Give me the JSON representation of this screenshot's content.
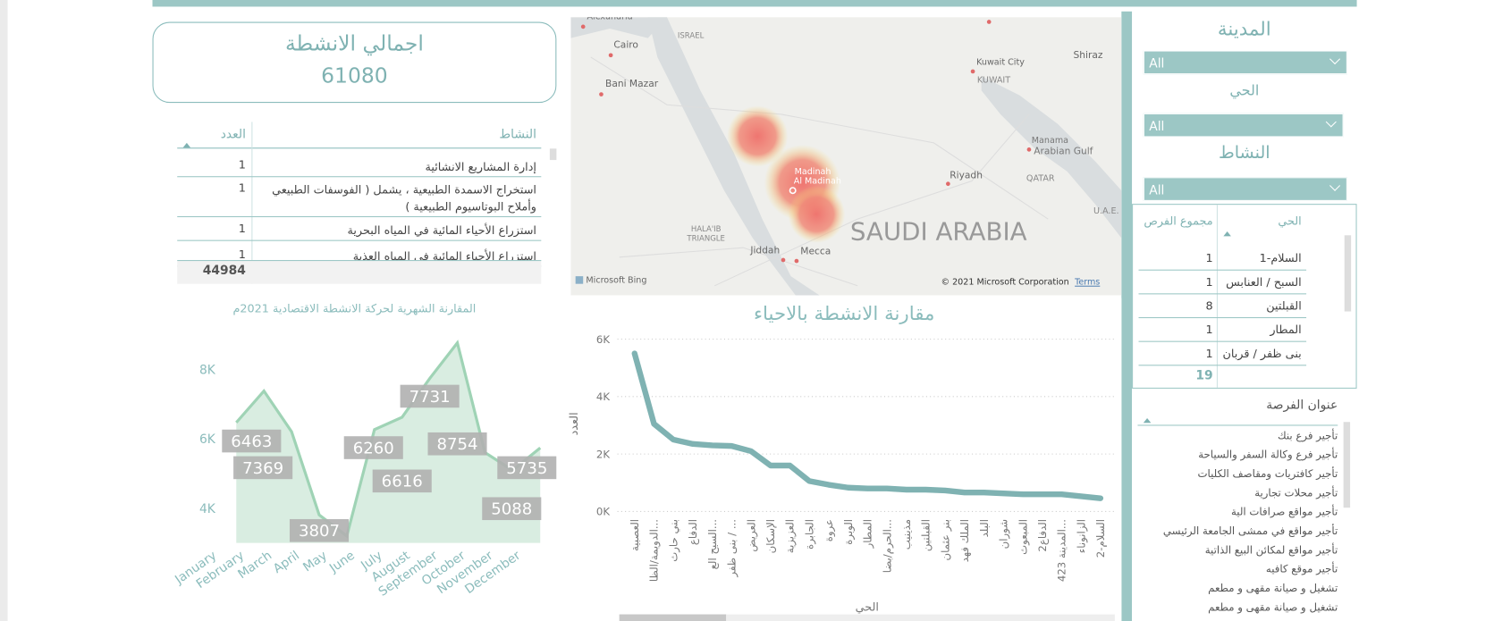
{
  "kpi": {
    "title": "اجمالي الانشطة",
    "value": 61080
  },
  "activity_table": {
    "headers": [
      "النشاط",
      "العدد"
    ],
    "rows": [
      [
        "إدارة المشاريع الانشائية",
        1
      ],
      [
        "استخراج الاسمدة الطبيعية ، يشمل ( الفوسفات الطبيعي وأملاح البوتاسيوم الطبيعية )",
        1
      ],
      [
        "استزراع الأحياء المائية في المياه البحرية",
        1
      ],
      [
        "استزراع الأحياء المائية في المياه العذبة",
        1
      ]
    ],
    "total": 44984
  },
  "map": {
    "labels": [
      "Alexandria",
      "Cairo",
      "ISRAEL",
      "Bani Mazar",
      "Kuwait City",
      "KUWAIT",
      "Shiraz",
      "Manama",
      "Arabian Gulf",
      "QATAR",
      "Riyadh",
      "U.A.E.",
      "Madinah",
      "Al Madinah",
      "SAUDI ARABIA",
      "HALA'IB",
      "TRIANGLE",
      "Jiddah",
      "Mecca"
    ],
    "logo": "Microsoft Bing",
    "attribution": "© 2021 Microsoft Corporation",
    "terms": "Terms"
  },
  "slicers": [
    {
      "label": "المدينة",
      "value": "All"
    },
    {
      "label": "الحي",
      "value": "All"
    },
    {
      "label": "النشاط",
      "value": "All"
    }
  ],
  "district_table": {
    "headers": [
      "الحي",
      "مجموع الفرص"
    ],
    "rows": [
      [
        "السلام-1",
        1
      ],
      [
        "السبح / العنابس",
        1
      ],
      [
        "القبلتين",
        8
      ],
      [
        "المطار",
        1
      ],
      [
        "بنى ظفر / قربان",
        1
      ]
    ],
    "total": 19
  },
  "opportunity_list": {
    "header": "عنوان الفرصة",
    "items": [
      "تأجير فرع بنك",
      "تأجير فرع وكالة السفر والسياحة",
      "تأجير كافتريات ومقاصف الكليات",
      "تأجير محلات تجارية",
      "تأجير مواقع صرافات الية",
      "تأجير مواقع في ممشى الجامعة الرئيسي",
      "تأجير مواقع لمكائن البيع الذاتية",
      "تأجير موقع كافيه",
      "تشغيل و صيانة مقهى و مطعم",
      "تشغيل و صيانة مقهى و مطعم"
    ]
  },
  "chart_data": [
    {
      "type": "area",
      "title": "المقارنة الشهرية لحركة الانشطة الاقتصادية 2021م",
      "categories": [
        "January",
        "February",
        "March",
        "April",
        "May",
        "June",
        "July",
        "August",
        "September",
        "October",
        "November",
        "December"
      ],
      "values": [
        6463,
        7369,
        6200,
        3807,
        3200,
        6260,
        6616,
        7731,
        8754,
        5600,
        5088,
        5735
      ],
      "value_labels": [
        "6463",
        "7369",
        null,
        "3807",
        null,
        "6260",
        "6616",
        "7731",
        "8754",
        null,
        "5088",
        "5735"
      ],
      "color": "#9fd3b5",
      "ylim": [
        3000,
        9000
      ],
      "yticks": [
        {
          "value": 4000,
          "label": "4K"
        },
        {
          "value": 6000,
          "label": "6K"
        },
        {
          "value": 8000,
          "label": "8K"
        }
      ],
      "grid": false
    },
    {
      "type": "line",
      "title": "مقارنة الانشطة بالاحياء",
      "x_label": "الحي",
      "y_label": "العدد",
      "categories": [
        "العصبية",
        "الدويمة/الظا...",
        "بني حارث",
        "الدفاع",
        "السيح الع...",
        "بنى ظفر / ...",
        "العريض",
        "الإسكان",
        "العزيزية",
        "الجابرة",
        "عروة",
        "الوبرة",
        "المطار",
        "الحرم/بضا...",
        "مذينيب",
        "القبلتين",
        "بنر عثمان",
        "الملك فهد",
        "البلد",
        "شوران",
        "المبعوث",
        "الدفاع2",
        "المدينة 423...",
        "الزانوناء",
        "السلام-2"
      ],
      "values": [
        5500,
        3050,
        2500,
        2350,
        2300,
        2280,
        2100,
        1600,
        1600,
        1060,
        930,
        830,
        800,
        800,
        760,
        760,
        730,
        660,
        660,
        630,
        600,
        600,
        600,
        530,
        460
      ],
      "color": "#7fb2b2",
      "ylim": [
        0,
        6000
      ],
      "yticks": [
        {
          "value": 0,
          "label": "0K"
        },
        {
          "value": 2000,
          "label": "2K"
        },
        {
          "value": 4000,
          "label": "4K"
        },
        {
          "value": 6000,
          "label": "6K"
        }
      ],
      "grid": true
    }
  ]
}
